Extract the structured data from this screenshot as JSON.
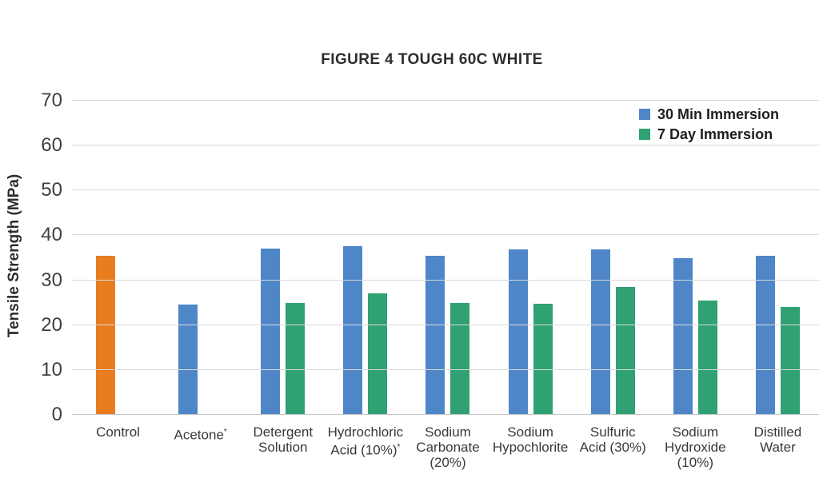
{
  "chart_data": {
    "type": "bar",
    "title": "FIGURE 4 TOUGH 60C WHITE",
    "ylabel": "Tensile Strength (MPa)",
    "ylim": [
      0,
      70
    ],
    "ytick_interval": 10,
    "yticks": [
      0,
      10,
      20,
      30,
      40,
      50,
      60,
      70
    ],
    "grid": true,
    "legend_position": "top-right",
    "categories": [
      "Control",
      "Acetone*",
      "Detergent Solution",
      "Hydrochloric Acid (10%)*",
      "Sodium Carbonate (20%)",
      "Sodium Hypochlorite",
      "Sulfuric Acid (30%)",
      "Sodium Hydroxide (10%)",
      "Distilled Water"
    ],
    "category_label_lines": [
      [
        "Control"
      ],
      [
        "Acetone*"
      ],
      [
        "Detergent",
        "Solution"
      ],
      [
        "Hydrochloric",
        "Acid (10%)*"
      ],
      [
        "Sodium",
        "Carbonate",
        "(20%)"
      ],
      [
        "Sodium",
        "Hypochlorite"
      ],
      [
        "Sulfuric",
        "Acid (30%)"
      ],
      [
        "Sodium",
        "Hydroxide",
        "(10%)"
      ],
      [
        "Distilled",
        "Water"
      ]
    ],
    "series": [
      {
        "name": "30 Min Immersion",
        "color": "#4E86C8",
        "values": [
          35.5,
          24.5,
          37,
          37.5,
          35.5,
          36.8,
          36.8,
          35,
          35.5
        ]
      },
      {
        "name": "7 Day Immersion",
        "color": "#2FA172",
        "values": [
          null,
          null,
          25,
          27,
          25,
          24.8,
          28.5,
          25.5,
          24
        ]
      }
    ],
    "bar_color_overrides": [
      {
        "category_index": 0,
        "series_index": 0,
        "color": "#E87D1F"
      }
    ],
    "colors": {
      "control_orange": "#E87D1F",
      "blue_30min": "#4E86C8",
      "green_7day": "#2FA172",
      "gridline": "#D9D9D9",
      "axis_line": "#C7C7C7",
      "text": "#2D2D2D"
    }
  }
}
